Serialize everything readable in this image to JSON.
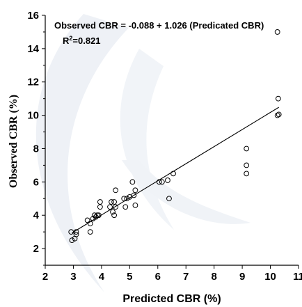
{
  "chart_data": {
    "type": "scatter",
    "title": "",
    "xlabel": "Predicted CBR (%)",
    "ylabel": "Observed CBR (%)",
    "xlim": [
      2,
      11
    ],
    "ylim": [
      1,
      16
    ],
    "xticks": [
      2,
      3,
      4,
      5,
      6,
      7,
      8,
      9,
      10,
      11
    ],
    "yticks": [
      2,
      4,
      6,
      8,
      10,
      12,
      14,
      16
    ],
    "grid": false,
    "annotations": {
      "equation": "Observed CBR = -0.088 + 1.026 (Predicated CBR)",
      "r2_label": "R",
      "r2_sup": "2",
      "r2_value": "=0.821"
    },
    "fit_line": {
      "intercept": -0.088,
      "slope": 1.026,
      "x_range": [
        2.95,
        10.3
      ]
    },
    "points": [
      {
        "x": 2.92,
        "y": 3.0
      },
      {
        "x": 2.95,
        "y": 2.5
      },
      {
        "x": 3.05,
        "y": 2.6
      },
      {
        "x": 3.1,
        "y": 2.85
      },
      {
        "x": 3.1,
        "y": 3.0
      },
      {
        "x": 3.5,
        "y": 3.7
      },
      {
        "x": 3.6,
        "y": 3.5
      },
      {
        "x": 3.6,
        "y": 3.0
      },
      {
        "x": 3.7,
        "y": 3.8
      },
      {
        "x": 3.75,
        "y": 4.0
      },
      {
        "x": 3.8,
        "y": 3.9
      },
      {
        "x": 3.85,
        "y": 4.0
      },
      {
        "x": 3.9,
        "y": 4.0
      },
      {
        "x": 3.95,
        "y": 4.5
      },
      {
        "x": 3.95,
        "y": 4.8
      },
      {
        "x": 4.3,
        "y": 4.5
      },
      {
        "x": 4.35,
        "y": 4.8
      },
      {
        "x": 4.4,
        "y": 4.2
      },
      {
        "x": 4.45,
        "y": 4.0
      },
      {
        "x": 4.45,
        "y": 4.8
      },
      {
        "x": 4.5,
        "y": 4.5
      },
      {
        "x": 4.5,
        "y": 5.5
      },
      {
        "x": 4.8,
        "y": 5.0
      },
      {
        "x": 4.85,
        "y": 4.5
      },
      {
        "x": 4.9,
        "y": 5.0
      },
      {
        "x": 5.0,
        "y": 5.1
      },
      {
        "x": 5.1,
        "y": 6.0
      },
      {
        "x": 5.15,
        "y": 5.2
      },
      {
        "x": 5.2,
        "y": 5.5
      },
      {
        "x": 5.2,
        "y": 4.6
      },
      {
        "x": 6.05,
        "y": 6.0
      },
      {
        "x": 6.15,
        "y": 6.0
      },
      {
        "x": 6.35,
        "y": 6.1
      },
      {
        "x": 6.4,
        "y": 5.0
      },
      {
        "x": 6.55,
        "y": 6.5
      },
      {
        "x": 9.15,
        "y": 8.0
      },
      {
        "x": 9.15,
        "y": 7.0
      },
      {
        "x": 9.15,
        "y": 6.5
      },
      {
        "x": 10.25,
        "y": 15.0
      },
      {
        "x": 10.28,
        "y": 11.0
      },
      {
        "x": 10.25,
        "y": 10.0
      },
      {
        "x": 10.3,
        "y": 10.05
      }
    ]
  }
}
